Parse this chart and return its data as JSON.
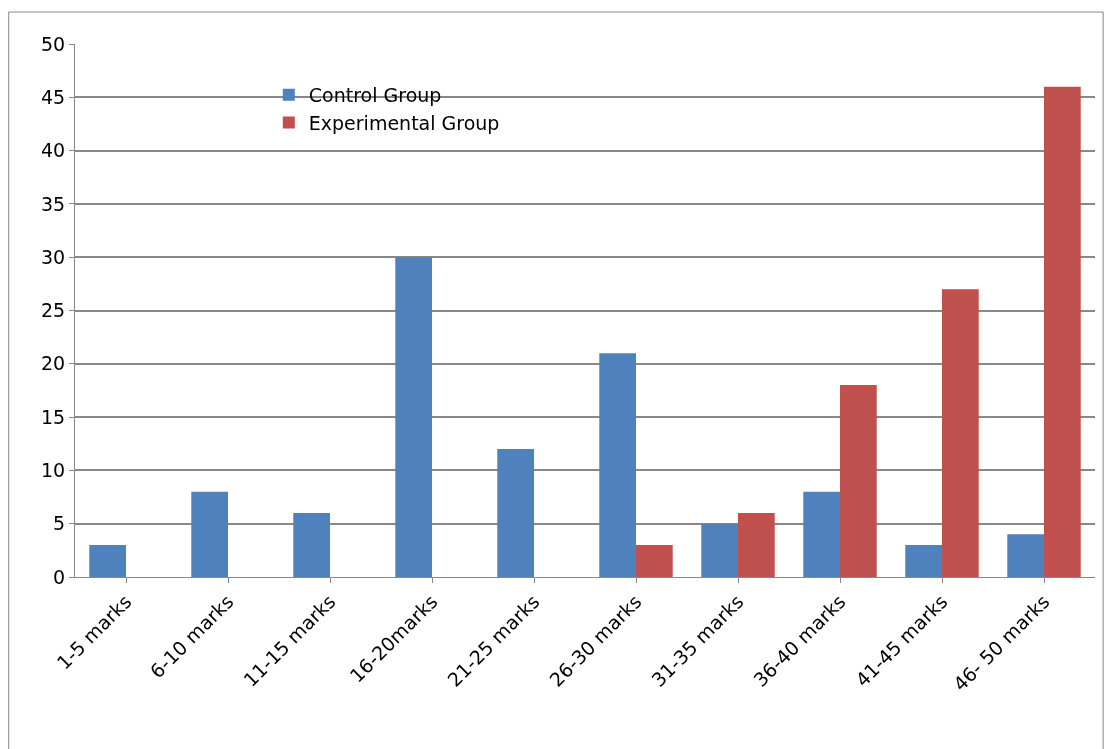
{
  "chart_data": {
    "type": "bar",
    "categories": [
      "1-5 marks",
      "6-10 marks",
      "11-15 marks",
      "16-20marks",
      "21-25 marks",
      "26-30 marks",
      "31-35 marks",
      "36-40 marks",
      "41-45 marks",
      "46- 50 marks"
    ],
    "series": [
      {
        "name": "Control Group",
        "color": "#4f81bd",
        "values": [
          3,
          8,
          6,
          30,
          12,
          21,
          5,
          8,
          3,
          4
        ]
      },
      {
        "name": "Experimental Group",
        "color": "#c0504d",
        "values": [
          null,
          null,
          null,
          null,
          null,
          3,
          6,
          18,
          27,
          46
        ]
      }
    ],
    "ylim": [
      0,
      50
    ],
    "yticks": [
      0,
      5,
      10,
      15,
      20,
      25,
      30,
      35,
      40,
      45,
      50
    ],
    "grid": "y",
    "legend": "top left"
  }
}
